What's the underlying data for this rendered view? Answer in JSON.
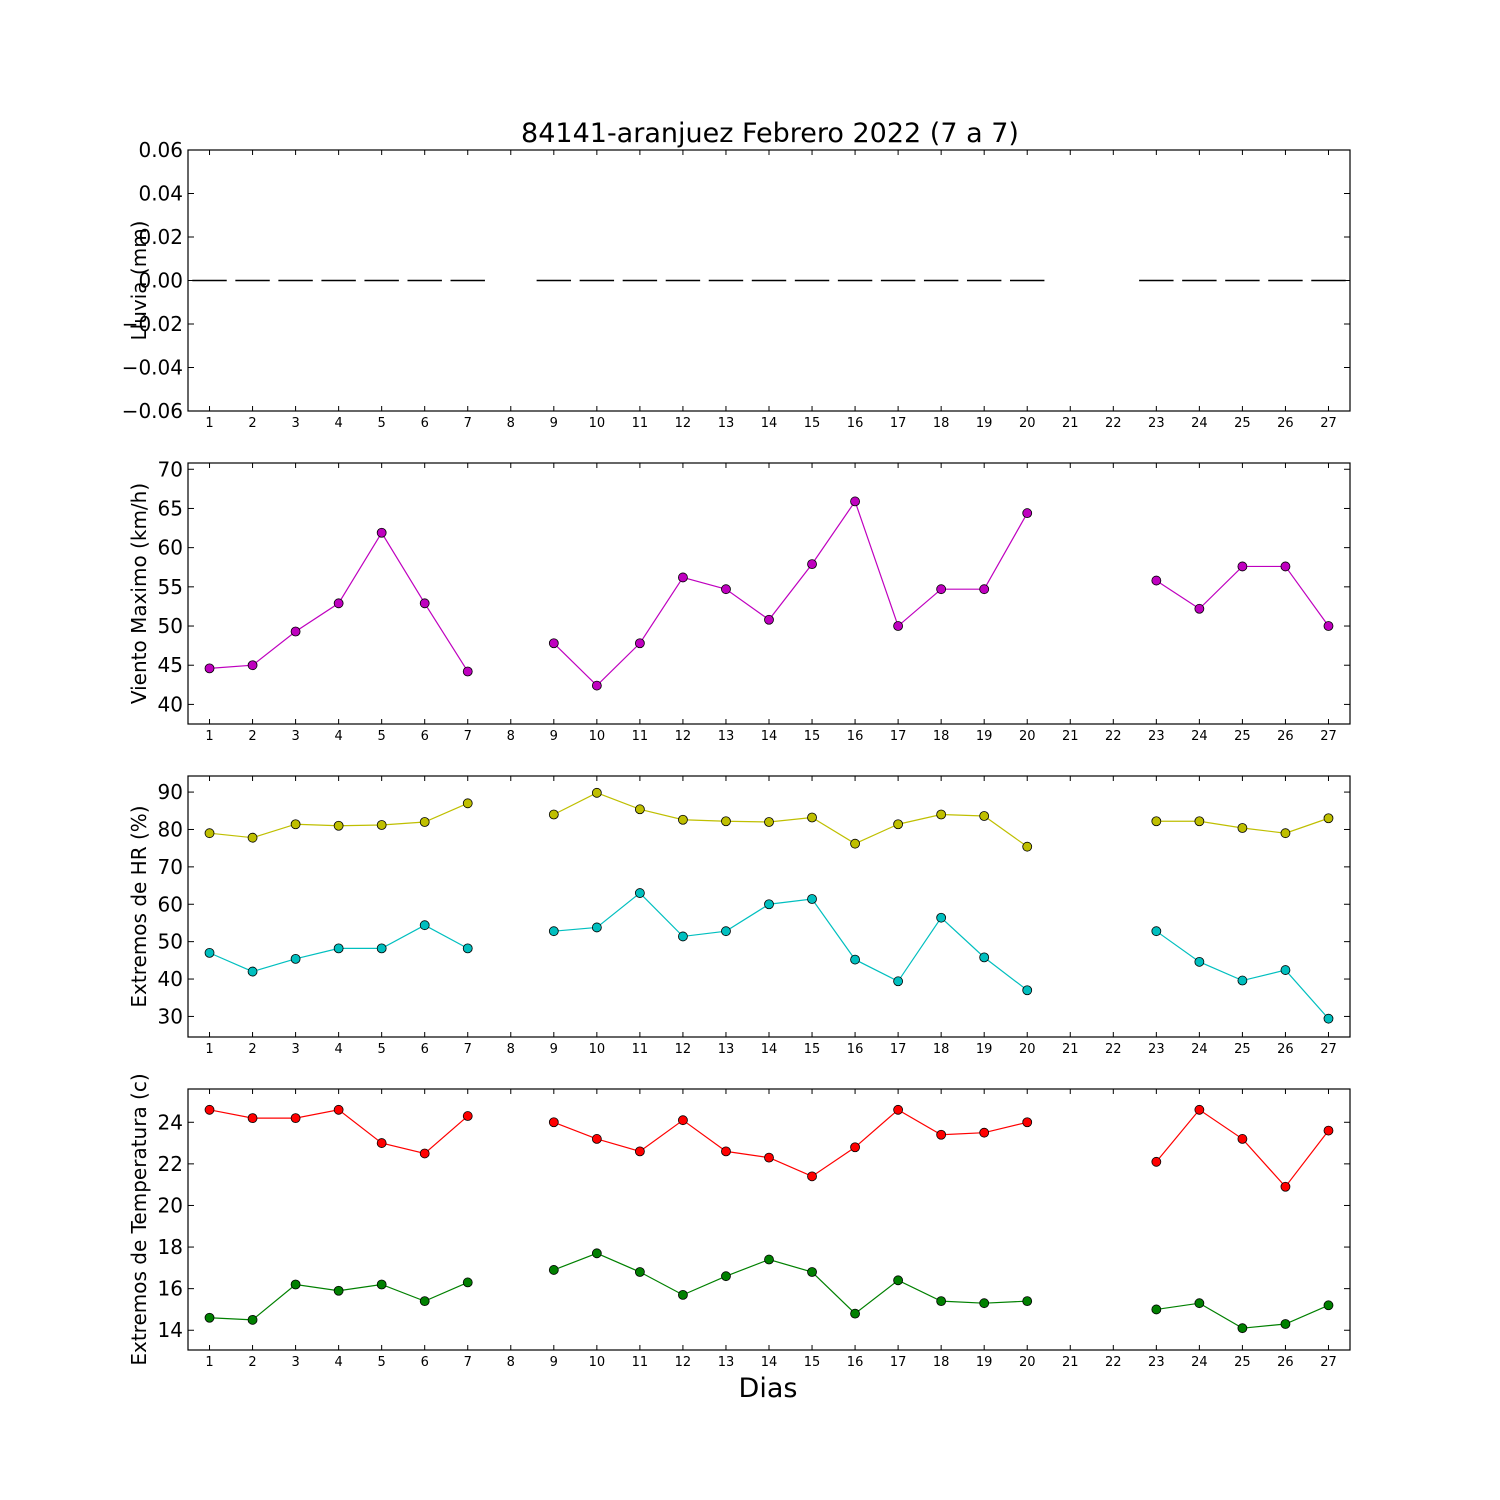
{
  "chart_data": {
    "type": "line",
    "title": "84141-aranjuez Febrero 2022  (7 a 7)",
    "xlabel": "Dias",
    "x_ticks": [
      1,
      2,
      3,
      4,
      5,
      6,
      7,
      8,
      9,
      10,
      11,
      12,
      13,
      14,
      15,
      16,
      17,
      18,
      19,
      20,
      21,
      22,
      23,
      24,
      25,
      26,
      27
    ],
    "panels": [
      {
        "id": "lluvia",
        "ylabel": "Lluvia (mm)",
        "ylim": [
          -0.06,
          0.06
        ],
        "y_ticks": [
          0.06,
          0.04,
          0.02,
          0.0,
          -0.02,
          -0.04,
          -0.06
        ],
        "y_tick_labels": [
          "0.06",
          "0.04",
          "0.02",
          "0.00",
          "−0.02",
          "−0.04",
          "−0.06"
        ],
        "style": "bars",
        "series": [
          {
            "color": "#000000",
            "values": [
              0,
              0,
              0,
              0,
              0,
              0,
              0,
              null,
              0,
              0,
              0,
              0,
              0,
              0,
              0,
              0,
              0,
              0,
              0,
              0,
              null,
              null,
              0,
              0,
              0,
              0,
              0
            ]
          }
        ]
      },
      {
        "id": "viento",
        "ylabel": "Viento Maximo (km/h)",
        "ylim": [
          37.5,
          70.8
        ],
        "y_ticks": [
          70,
          65,
          60,
          55,
          50,
          45,
          40
        ],
        "y_tick_labels": [
          "70",
          "65",
          "60",
          "55",
          "50",
          "45",
          "40"
        ],
        "style": "line",
        "series": [
          {
            "color": "#bf00bf",
            "values": [
              44.6,
              45.0,
              49.3,
              52.9,
              61.9,
              52.9,
              44.2,
              null,
              47.8,
              42.4,
              47.8,
              56.2,
              54.7,
              50.8,
              57.9,
              65.9,
              50.0,
              54.7,
              54.7,
              64.4,
              null,
              null,
              55.8,
              52.2,
              57.6,
              57.6,
              50.0
            ]
          }
        ]
      },
      {
        "id": "hr",
        "ylabel": "Extremos de HR (%)",
        "ylim": [
          24.5,
          94.3
        ],
        "y_ticks": [
          90,
          80,
          70,
          60,
          50,
          40,
          30
        ],
        "y_tick_labels": [
          "90",
          "80",
          "70",
          "60",
          "50",
          "40",
          "30"
        ],
        "style": "line",
        "series": [
          {
            "color": "#bfbf00",
            "values": [
              79.0,
              77.8,
              81.4,
              81.0,
              81.2,
              82.0,
              87.0,
              null,
              84.0,
              89.8,
              85.4,
              82.6,
              82.2,
              82.0,
              83.2,
              76.2,
              81.4,
              84.0,
              83.6,
              75.4,
              null,
              null,
              82.2,
              82.2,
              80.4,
              79.0,
              83.0
            ]
          },
          {
            "color": "#00bfbf",
            "values": [
              47.0,
              42.0,
              45.4,
              48.2,
              48.2,
              54.4,
              48.2,
              null,
              52.8,
              53.8,
              63.0,
              51.4,
              52.8,
              60.0,
              61.4,
              45.2,
              39.4,
              56.4,
              45.8,
              37.0,
              null,
              null,
              52.8,
              44.6,
              39.6,
              42.4,
              29.4
            ]
          }
        ]
      },
      {
        "id": "temp",
        "ylabel": "Extremos de Temperatura (c)",
        "ylim": [
          13.05,
          25.6
        ],
        "y_ticks": [
          24,
          22,
          20,
          18,
          16,
          14
        ],
        "y_tick_labels": [
          "24",
          "22",
          "20",
          "18",
          "16",
          "14"
        ],
        "style": "line",
        "series": [
          {
            "color": "#ff0000",
            "values": [
              24.6,
              24.2,
              24.2,
              24.6,
              23.0,
              22.5,
              24.3,
              null,
              24.0,
              23.2,
              22.6,
              24.1,
              22.6,
              22.3,
              21.4,
              22.8,
              24.6,
              23.4,
              23.5,
              24.0,
              null,
              null,
              22.1,
              24.6,
              23.2,
              20.9,
              23.6
            ]
          },
          {
            "color": "#008000",
            "values": [
              14.6,
              14.5,
              16.2,
              15.9,
              16.2,
              15.4,
              16.3,
              null,
              16.9,
              17.7,
              16.8,
              15.7,
              16.6,
              17.4,
              16.8,
              14.8,
              16.4,
              15.4,
              15.3,
              15.4,
              null,
              null,
              15.0,
              15.3,
              14.1,
              14.3,
              15.2
            ]
          }
        ]
      }
    ]
  }
}
